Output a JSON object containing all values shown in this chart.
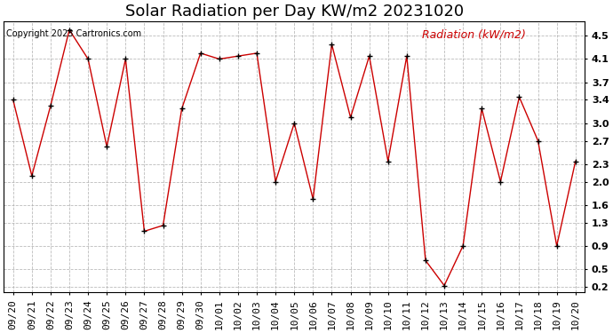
{
  "title": "Solar Radiation per Day KW/m2 20231020",
  "copyright_text": "Copyright 2023 Cartronics.com",
  "legend_label": "Radiation (kW/m2)",
  "dates": [
    "09/20",
    "09/21",
    "09/22",
    "09/23",
    "09/24",
    "09/25",
    "09/26",
    "09/27",
    "09/28",
    "09/29",
    "09/30",
    "10/01",
    "10/02",
    "10/03",
    "10/04",
    "10/05",
    "10/06",
    "10/07",
    "10/08",
    "10/09",
    "10/10",
    "10/11",
    "10/12",
    "10/13",
    "10/14",
    "10/15",
    "10/16",
    "10/17",
    "10/18",
    "10/19",
    "10/20"
  ],
  "values": [
    3.4,
    2.1,
    3.3,
    4.6,
    4.1,
    2.6,
    4.1,
    1.15,
    1.25,
    3.25,
    4.2,
    4.1,
    4.15,
    4.2,
    2.0,
    3.0,
    1.7,
    4.35,
    3.1,
    4.15,
    2.35,
    4.15,
    0.65,
    0.22,
    0.9,
    3.25,
    2.0,
    3.45,
    2.7,
    0.9,
    2.35
  ],
  "line_color": "#cc0000",
  "marker_color": "#000000",
  "background_color": "#ffffff",
  "grid_color": "#aaaaaa",
  "title_color": "#000000",
  "copyright_color": "#000000",
  "legend_color": "#cc0000",
  "ylim": [
    0.1,
    4.75
  ],
  "yticks": [
    0.2,
    0.5,
    0.9,
    1.3,
    1.6,
    2.0,
    2.3,
    2.7,
    3.0,
    3.4,
    3.7,
    4.1,
    4.5
  ],
  "title_fontsize": 13,
  "copyright_fontsize": 7,
  "legend_fontsize": 9,
  "tick_fontsize": 8
}
